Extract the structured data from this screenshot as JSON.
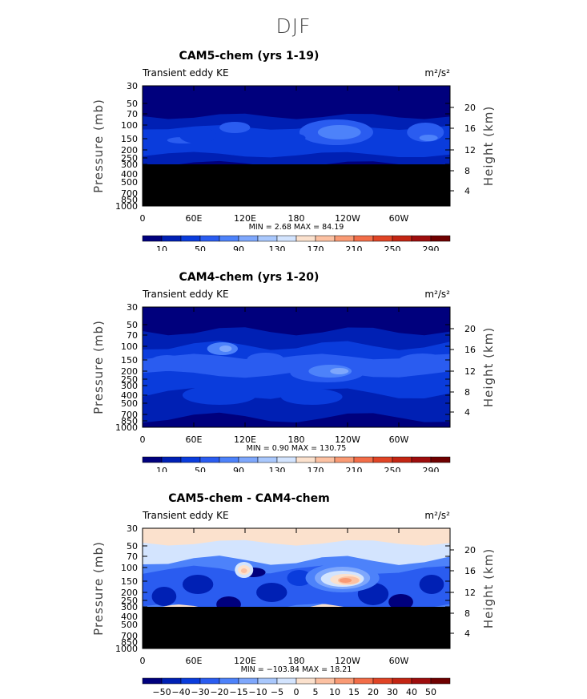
{
  "figure": {
    "title": "DJF"
  },
  "chart_data": [
    {
      "type": "heatmap",
      "title": "CAM5-chem (yrs 1-19)",
      "left_label": "Transient eddy KE",
      "units": "m²/s²",
      "ylabel": "Pressure (mb)",
      "ylabel_right": "Height (km)",
      "x_ticks": [
        "0",
        "60E",
        "120E",
        "180",
        "120W",
        "60W"
      ],
      "y_ticks": [
        "30",
        "50",
        "70",
        "100",
        "150",
        "200",
        "250",
        "300",
        "400",
        "500",
        "700",
        "850",
        "1000"
      ],
      "height_ticks": [
        "20",
        "16",
        "12",
        "8",
        "4"
      ],
      "stats": "MIN =    2.68   MAX =   84.19",
      "colorbar_labels": [
        "10",
        "50",
        "90",
        "130",
        "170",
        "210",
        "250",
        "290"
      ],
      "colorbar_colors": [
        "#00007d",
        "#0020b4",
        "#0a3cdc",
        "#2a5cf0",
        "#4d82fa",
        "#7ea7fc",
        "#a9c8fd",
        "#d3e4fe",
        "#fbe1cd",
        "#fcc1a2",
        "#f99a74",
        "#f26d48",
        "#e04425",
        "#c32513",
        "#9e0d0d",
        "#6f0000"
      ],
      "masked_below_mb": 300
    },
    {
      "type": "heatmap",
      "title": "CAM4-chem (yrs 1-20)",
      "left_label": "Transient eddy KE",
      "units": "m²/s²",
      "ylabel": "Pressure (mb)",
      "ylabel_right": "Height (km)",
      "x_ticks": [
        "0",
        "60E",
        "120E",
        "180",
        "120W",
        "60W"
      ],
      "y_ticks": [
        "30",
        "50",
        "70",
        "100",
        "150",
        "200",
        "250",
        "300",
        "400",
        "500",
        "700",
        "850",
        "1000"
      ],
      "height_ticks": [
        "20",
        "16",
        "12",
        "8",
        "4"
      ],
      "stats": "MIN =    0.90   MAX =  130.75",
      "colorbar_labels": [
        "10",
        "50",
        "90",
        "130",
        "170",
        "210",
        "250",
        "290"
      ],
      "colorbar_colors": [
        "#00007d",
        "#0020b4",
        "#0a3cdc",
        "#2a5cf0",
        "#4d82fa",
        "#7ea7fc",
        "#a9c8fd",
        "#d3e4fe",
        "#fbe1cd",
        "#fcc1a2",
        "#f99a74",
        "#f26d48",
        "#e04425",
        "#c32513",
        "#9e0d0d",
        "#6f0000"
      ],
      "masked_below_mb": null
    },
    {
      "type": "heatmap",
      "title": "CAM5-chem - CAM4-chem",
      "left_label": "Transient eddy KE",
      "units": "m²/s²",
      "ylabel": "Pressure (mb)",
      "ylabel_right": "Height (km)",
      "x_ticks": [
        "0",
        "60E",
        "120E",
        "180",
        "120W",
        "60W"
      ],
      "y_ticks": [
        "30",
        "50",
        "70",
        "100",
        "150",
        "200",
        "250",
        "300",
        "400",
        "500",
        "700",
        "850",
        "1000"
      ],
      "height_ticks": [
        "20",
        "16",
        "12",
        "8",
        "4"
      ],
      "stats": "MIN = −103.84   MAX =   18.21",
      "colorbar_labels": [
        "−50",
        "−40",
        "−30",
        "−20",
        "−15",
        "−10",
        "−5",
        "0",
        "5",
        "10",
        "15",
        "20",
        "30",
        "40",
        "50"
      ],
      "colorbar_colors": [
        "#00007d",
        "#0020b4",
        "#0a3cdc",
        "#2a5cf0",
        "#4d82fa",
        "#7ea7fc",
        "#a9c8fd",
        "#d3e4fe",
        "#fbe1cd",
        "#fcc1a2",
        "#f99a74",
        "#f26d48",
        "#e04425",
        "#c32513",
        "#9e0d0d",
        "#6f0000"
      ],
      "masked_below_mb": 300
    }
  ]
}
